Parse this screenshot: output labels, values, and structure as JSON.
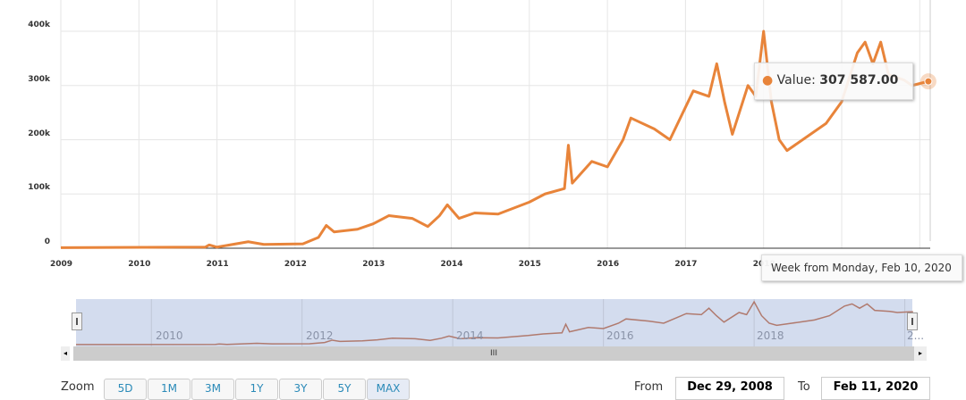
{
  "chart_data": {
    "type": "line",
    "x": [
      2009.0,
      2010.85,
      2010.9,
      2011.0,
      2011.4,
      2011.6,
      2012.1,
      2012.3,
      2012.4,
      2012.5,
      2012.8,
      2013.0,
      2013.2,
      2013.5,
      2013.7,
      2013.85,
      2013.95,
      2014.1,
      2014.3,
      2014.6,
      2015.0,
      2015.2,
      2015.45,
      2015.5,
      2015.55,
      2015.8,
      2016.0,
      2016.2,
      2016.3,
      2016.6,
      2016.8,
      2017.0,
      2017.1,
      2017.3,
      2017.4,
      2017.5,
      2017.6,
      2017.8,
      2017.9,
      2018.0,
      2018.1,
      2018.2,
      2018.3,
      2018.5,
      2018.8,
      2019.0,
      2019.2,
      2019.3,
      2019.4,
      2019.5,
      2019.6,
      2019.8,
      2019.9,
      2020.11
    ],
    "values": [
      1000,
      2000,
      6000,
      2000,
      12000,
      7000,
      8000,
      20000,
      42000,
      30000,
      35000,
      45000,
      60000,
      55000,
      40000,
      60000,
      80000,
      55000,
      65000,
      63000,
      85000,
      100000,
      110000,
      190000,
      120000,
      160000,
      150000,
      200000,
      240000,
      220000,
      200000,
      260000,
      290000,
      280000,
      340000,
      270000,
      210000,
      300000,
      280000,
      400000,
      270000,
      200000,
      180000,
      200000,
      230000,
      270000,
      360000,
      380000,
      340000,
      380000,
      320000,
      310000,
      300000,
      307587
    ],
    "xlim": [
      2009,
      2020.2
    ],
    "ylim": [
      0,
      400000
    ],
    "y_ticks": [
      "0",
      "100k",
      "200k",
      "300k",
      "400k"
    ],
    "x_ticks": [
      "2009",
      "2010",
      "2011",
      "2012",
      "2013",
      "2014",
      "2015",
      "2016",
      "2017",
      "2018"
    ],
    "line_color": "#e8843a",
    "grid": true
  },
  "tooltip": {
    "value_label": "Value:",
    "value": "307 587.00",
    "date": "Week from Monday, Feb 10, 2020"
  },
  "navigator": {
    "labels": [
      "2010",
      "2012",
      "2014",
      "2016",
      "2018",
      "2..."
    ],
    "scroll_handle": "III"
  },
  "range_selector": {
    "zoom_label": "Zoom",
    "buttons": [
      "5D",
      "1M",
      "3M",
      "1Y",
      "3Y",
      "5Y",
      "MAX"
    ],
    "active": "MAX"
  },
  "date_range": {
    "from_label": "From",
    "from": "Dec 29, 2008",
    "to_label": "To",
    "to": "Feb 11, 2020"
  }
}
